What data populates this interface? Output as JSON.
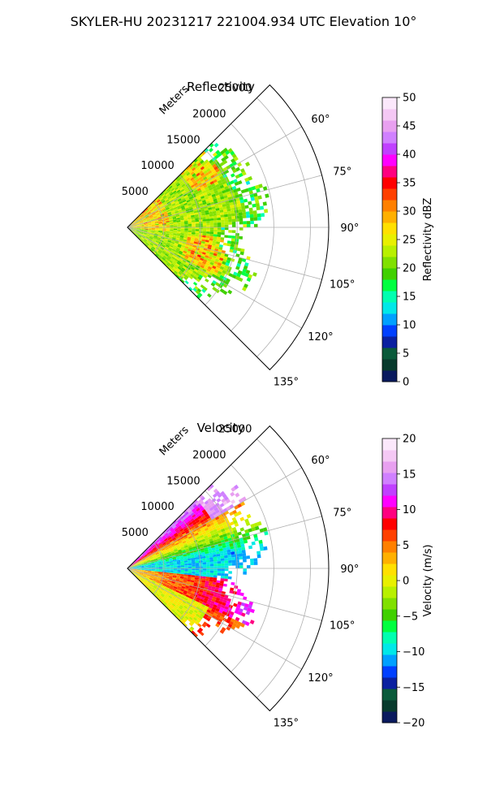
{
  "figure_title": "SKYLER-HU  20231217  221004.934 UTC Elevation 10°",
  "chart_data": [
    {
      "type": "heatmap",
      "projection": "polar-sector",
      "title": "Reflectivity",
      "radial_label": "Meters",
      "radial_ticks": [
        5000,
        10000,
        15000,
        20000,
        25000
      ],
      "radial_tick_labels": [
        "5000",
        "10000",
        "15000",
        "20000",
        "25000"
      ],
      "rlim": [
        0,
        27500
      ],
      "angle_ticks": [
        60,
        75,
        90,
        105,
        120,
        135
      ],
      "angle_tick_labels": [
        "60°",
        "75°",
        "90°",
        "105°",
        "120°",
        "135°"
      ],
      "theta_range_deg": [
        45,
        135
      ],
      "grid": true,
      "data_extent": {
        "azimuth_deg": [
          45,
          135
        ],
        "range_m": [
          0,
          18500
        ]
      },
      "colorbar": {
        "label": "Reflectivity dBZ",
        "range": [
          0,
          50
        ],
        "ticks": [
          0,
          5,
          10,
          15,
          20,
          25,
          30,
          35,
          40,
          45,
          50
        ],
        "tick_labels": [
          "0",
          "5",
          "10",
          "15",
          "20",
          "25",
          "30",
          "35",
          "40",
          "45",
          "50"
        ],
        "colors": [
          "#0a1a5e",
          "#083a2c",
          "#0a5a3a",
          "#0a20a0",
          "#0040ff",
          "#00a0ff",
          "#00e8e8",
          "#00ffb0",
          "#00ff40",
          "#40d000",
          "#80e000",
          "#b8f000",
          "#e8f000",
          "#ffe000",
          "#ffb000",
          "#ff8000",
          "#ff4000",
          "#ff0000",
          "#ff0080",
          "#ff00ff",
          "#c040ff",
          "#d080ff",
          "#e8a0f0",
          "#f4c8f4",
          "#fbe8fb"
        ]
      }
    },
    {
      "type": "heatmap",
      "projection": "polar-sector",
      "title": "Velocity",
      "radial_label": "Meters",
      "radial_ticks": [
        5000,
        10000,
        15000,
        20000,
        25000
      ],
      "radial_tick_labels": [
        "5000",
        "10000",
        "15000",
        "20000",
        "25000"
      ],
      "rlim": [
        0,
        27500
      ],
      "angle_ticks": [
        60,
        75,
        90,
        105,
        120,
        135
      ],
      "angle_tick_labels": [
        "60°",
        "75°",
        "90°",
        "105°",
        "120°",
        "135°"
      ],
      "theta_range_deg": [
        45,
        135
      ],
      "grid": true,
      "data_extent": {
        "azimuth_deg": [
          45,
          135
        ],
        "range_m": [
          0,
          18500
        ]
      },
      "colorbar": {
        "label": "Velocity (m/s)",
        "range": [
          -20,
          20
        ],
        "ticks": [
          -20,
          -15,
          -10,
          -5,
          0,
          5,
          10,
          15,
          20
        ],
        "tick_labels": [
          "−20",
          "−15",
          "−10",
          "−5",
          "0",
          "5",
          "10",
          "15",
          "20"
        ],
        "colors": [
          "#0a1a5e",
          "#083a2c",
          "#0a5a3a",
          "#0a20a0",
          "#0040ff",
          "#00a0ff",
          "#00e8e8",
          "#00ffb0",
          "#00ff40",
          "#40d000",
          "#80e000",
          "#b8f000",
          "#e8f000",
          "#ffe000",
          "#ffb000",
          "#ff8000",
          "#ff4000",
          "#ff0000",
          "#ff0080",
          "#ff00ff",
          "#c040ff",
          "#d080ff",
          "#e8a0f0",
          "#f4c8f4",
          "#fbe8fb"
        ]
      }
    }
  ]
}
